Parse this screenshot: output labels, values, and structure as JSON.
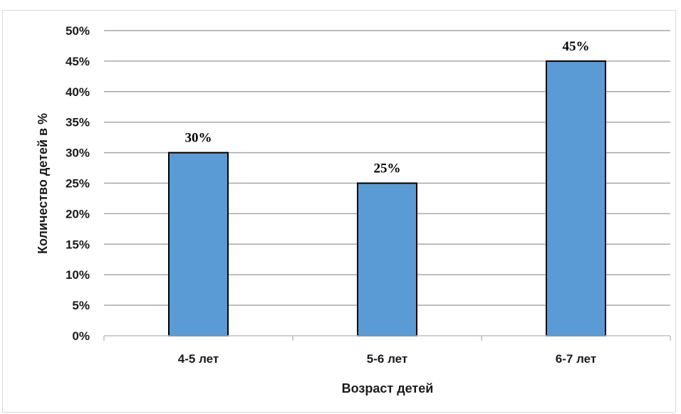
{
  "chart_data": {
    "type": "bar",
    "categories": [
      "4-5 лет",
      "5-6 лет",
      "6-7 лет"
    ],
    "values": [
      30,
      25,
      45
    ],
    "data_labels": [
      "30%",
      "25%",
      "45%"
    ],
    "ylim": [
      0,
      50
    ],
    "yticks": [
      "0%",
      "5%",
      "10%",
      "15%",
      "20%",
      "25%",
      "30%",
      "35%",
      "40%",
      "45%",
      "50%"
    ],
    "title": "",
    "xlabel": "Возраст детей",
    "ylabel": "Количество детей в %",
    "grid": true,
    "bar_color": "#5b9bd5",
    "bar_edge_color": "#000000",
    "gridline_color": "#a6a6a6"
  }
}
